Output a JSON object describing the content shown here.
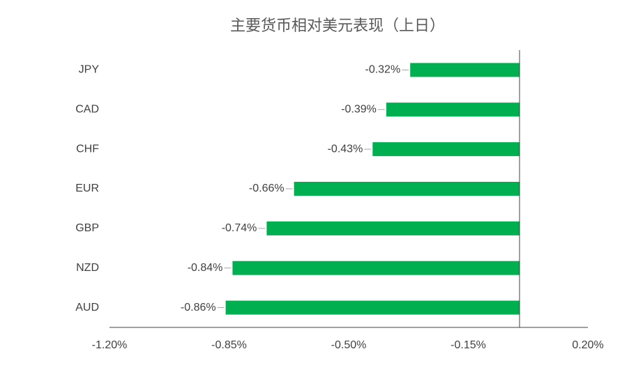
{
  "chart_data": {
    "type": "hbar",
    "title": "主要货币相对美元表现（上日）",
    "categories": [
      "JPY",
      "CAD",
      "CHF",
      "EUR",
      "GBP",
      "NZD",
      "AUD"
    ],
    "values": [
      -0.32,
      -0.39,
      -0.43,
      -0.66,
      -0.74,
      -0.84,
      -0.86
    ],
    "value_labels": [
      "-0.32%",
      "-0.39%",
      "-0.43%",
      "-0.66%",
      "-0.74%",
      "-0.84%",
      "-0.86%"
    ],
    "color": "#00b050",
    "xlim": [
      -1.2,
      0.2
    ],
    "xticks": [
      {
        "value": -1.2,
        "label": "-1.20%"
      },
      {
        "value": -0.85,
        "label": "-0.85%"
      },
      {
        "value": -0.5,
        "label": "-0.50%"
      },
      {
        "value": -0.15,
        "label": "-0.15%"
      },
      {
        "value": 0.2,
        "label": "0.20%"
      }
    ],
    "grid": false
  }
}
